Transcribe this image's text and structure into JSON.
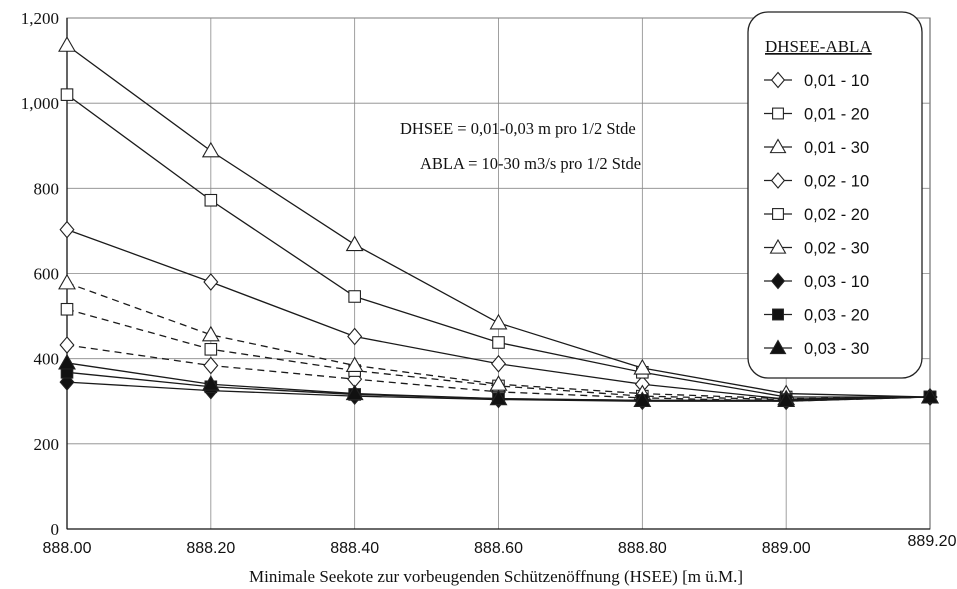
{
  "chart_data": {
    "type": "line",
    "title": "",
    "xlabel": "Minimale Seekote zur vorbeugenden Schützenöffnung (HSEE)  [m ü.M.]",
    "ylabel": "",
    "x": [
      888.0,
      888.2,
      888.4,
      888.6,
      888.8,
      889.0,
      889.2
    ],
    "x_tick_labels": [
      "888.00",
      "888.20",
      "888.40",
      "888.60",
      "888.80",
      "889.00",
      "889.20"
    ],
    "y_ticks": [
      0,
      200,
      400,
      600,
      800,
      1000,
      1200
    ],
    "y_tick_labels": [
      "0",
      "200",
      "400",
      "600",
      "800",
      "1,000",
      "1,200"
    ],
    "xlim": [
      888.0,
      889.2
    ],
    "ylim": [
      0,
      1200
    ],
    "grid": true,
    "legend_position": "top-right",
    "legend_title": "DHSEE-ABLA",
    "annotations": [
      "DHSEE = 0,01-0,03 m pro 1/2 Stde",
      "ABLA = 10-30 m3/s pro 1/2 Stde"
    ],
    "series": [
      {
        "name": "0,01  -  10",
        "marker": "diamond-open",
        "line": "solid",
        "values": [
          703,
          580,
          452,
          388,
          340,
          305,
          310
        ]
      },
      {
        "name": "0,01  -  20",
        "marker": "square-open",
        "line": "solid",
        "values": [
          1020,
          772,
          546,
          438,
          368,
          310,
          310
        ]
      },
      {
        "name": "0,01  -  30",
        "marker": "triangle-open",
        "line": "solid",
        "values": [
          1136,
          888,
          668,
          484,
          378,
          318,
          310
        ]
      },
      {
        "name": "0,02  -  10",
        "marker": "diamond-open",
        "line": "dashed",
        "values": [
          432,
          384,
          352,
          322,
          308,
          300,
          310
        ]
      },
      {
        "name": "0,02  -  20",
        "marker": "square-open",
        "line": "dashed",
        "values": [
          516,
          422,
          372,
          336,
          312,
          304,
          310
        ]
      },
      {
        "name": "0,02  -  30",
        "marker": "triangle-open",
        "line": "dashed",
        "values": [
          578,
          456,
          384,
          340,
          318,
          306,
          310
        ]
      },
      {
        "name": "0,03  -  10",
        "marker": "diamond-filled",
        "line": "solid",
        "values": [
          345,
          325,
          312,
          304,
          300,
          300,
          310
        ]
      },
      {
        "name": "0,03  -  20",
        "marker": "square-filled",
        "line": "solid",
        "values": [
          368,
          334,
          316,
          306,
          302,
          302,
          310
        ]
      },
      {
        "name": "0,03  -  30",
        "marker": "triangle-filled",
        "line": "solid",
        "values": [
          390,
          340,
          318,
          306,
          302,
          302,
          310
        ]
      }
    ]
  }
}
